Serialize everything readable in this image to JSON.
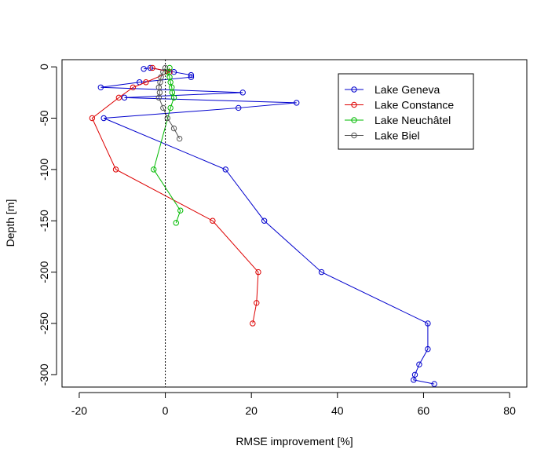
{
  "chart_data": {
    "type": "line",
    "title": "",
    "xlabel": "RMSE improvement [%]",
    "ylabel": "Depth [m]",
    "xlim": [
      -24,
      84
    ],
    "ylim": [
      -312,
      7
    ],
    "x_ticks": [
      -20,
      0,
      20,
      40,
      60,
      80
    ],
    "y_ticks": [
      0,
      -50,
      -100,
      -150,
      -200,
      -250,
      -300
    ],
    "reference_line": {
      "x": 0,
      "style": "dotted"
    },
    "grid": false,
    "legend_position": "top-right",
    "series": [
      {
        "name": "Lake Geneva",
        "color": "#0000CD",
        "points": [
          {
            "x": -5,
            "y": -2
          },
          {
            "x": -3.5,
            "y": -1
          },
          {
            "x": 2,
            "y": -5
          },
          {
            "x": 6,
            "y": -8
          },
          {
            "x": 6,
            "y": -10
          },
          {
            "x": -6,
            "y": -15
          },
          {
            "x": -15,
            "y": -20
          },
          {
            "x": 18,
            "y": -25
          },
          {
            "x": -9.5,
            "y": -30
          },
          {
            "x": 30.5,
            "y": -35
          },
          {
            "x": 17,
            "y": -40
          },
          {
            "x": -14.3,
            "y": -50
          },
          {
            "x": 14,
            "y": -100
          },
          {
            "x": 23,
            "y": -150
          },
          {
            "x": 36.3,
            "y": -200
          },
          {
            "x": 61,
            "y": -250
          },
          {
            "x": 61,
            "y": -275
          },
          {
            "x": 59,
            "y": -290
          },
          {
            "x": 58,
            "y": -300
          },
          {
            "x": 57.7,
            "y": -305
          },
          {
            "x": 62.5,
            "y": -309
          }
        ]
      },
      {
        "name": "Lake Constance",
        "color": "#DD0000",
        "points": [
          {
            "x": -3,
            "y": -1
          },
          {
            "x": 1,
            "y": -5
          },
          {
            "x": -4.5,
            "y": -15
          },
          {
            "x": -7.5,
            "y": -20
          },
          {
            "x": -10.8,
            "y": -30
          },
          {
            "x": -17,
            "y": -50
          },
          {
            "x": -11.5,
            "y": -100
          },
          {
            "x": 11,
            "y": -150
          },
          {
            "x": 21.6,
            "y": -200
          },
          {
            "x": 21.2,
            "y": -230
          },
          {
            "x": 20.3,
            "y": -250
          }
        ]
      },
      {
        "name": "Lake Neuchâtel",
        "color": "#00BB00",
        "points": [
          {
            "x": 1,
            "y": -1
          },
          {
            "x": 0.5,
            "y": -5
          },
          {
            "x": 1,
            "y": -10
          },
          {
            "x": 1.2,
            "y": -15
          },
          {
            "x": 1.5,
            "y": -20
          },
          {
            "x": 1.6,
            "y": -25
          },
          {
            "x": 2,
            "y": -30
          },
          {
            "x": 1.2,
            "y": -40
          },
          {
            "x": -2.7,
            "y": -100
          },
          {
            "x": 3.5,
            "y": -140
          },
          {
            "x": 2.5,
            "y": -152
          }
        ]
      },
      {
        "name": "Lake Biel",
        "color": "#555555",
        "points": [
          {
            "x": 0,
            "y": -1
          },
          {
            "x": -0.5,
            "y": -5
          },
          {
            "x": -1,
            "y": -10
          },
          {
            "x": -1.2,
            "y": -15
          },
          {
            "x": -1.5,
            "y": -20
          },
          {
            "x": -1.3,
            "y": -25
          },
          {
            "x": -1.5,
            "y": -30
          },
          {
            "x": -0.5,
            "y": -40
          },
          {
            "x": 0.5,
            "y": -50
          },
          {
            "x": 2,
            "y": -60
          },
          {
            "x": 3.3,
            "y": -70
          }
        ]
      }
    ]
  }
}
